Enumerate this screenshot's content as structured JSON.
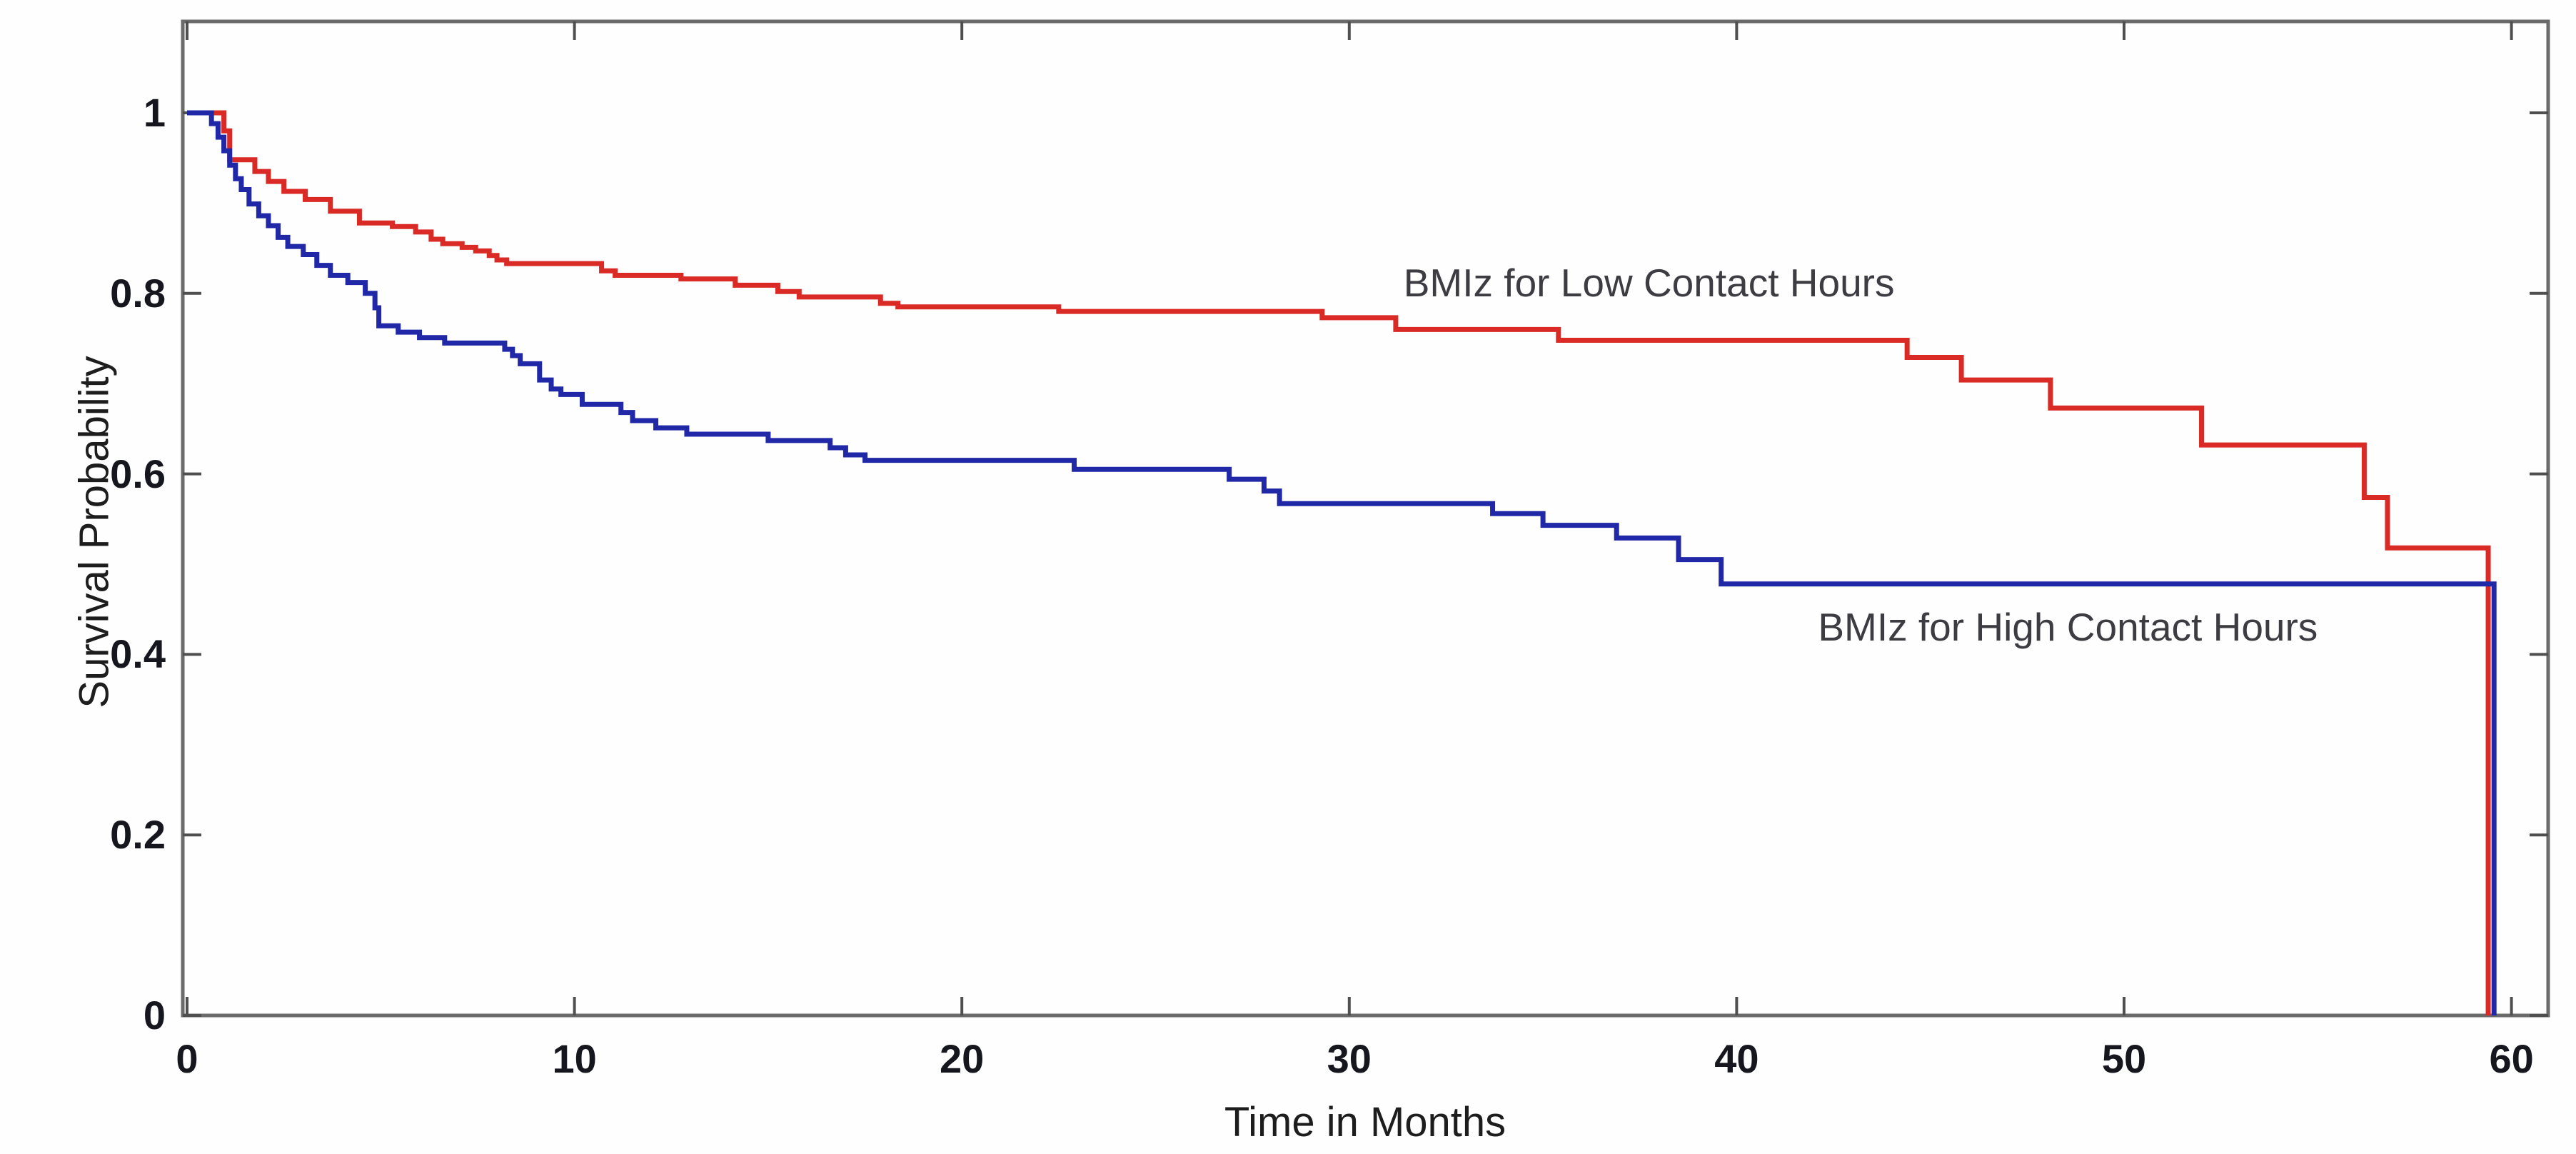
{
  "chart_data": {
    "type": "line",
    "subtype": "kaplan-meier-step-survival",
    "title": "",
    "xlabel": "Time in Months",
    "ylabel": "Survival Probability",
    "xlim": [
      0,
      61
    ],
    "ylim": [
      0,
      1.1
    ],
    "grid": false,
    "legend_position": "inline-labels",
    "axis_color": "#6a6a6a",
    "tick_color": "#4f4f4f",
    "x_ticks": [
      {
        "value": 0,
        "label": "0"
      },
      {
        "value": 10,
        "label": "10"
      },
      {
        "value": 20,
        "label": "20"
      },
      {
        "value": 30,
        "label": "30"
      },
      {
        "value": 40,
        "label": "40"
      },
      {
        "value": 50,
        "label": "50"
      },
      {
        "value": 60,
        "label": "60"
      }
    ],
    "y_ticks": [
      {
        "value": 1,
        "label": "1"
      },
      {
        "value": 0.8,
        "label": "0.8"
      },
      {
        "value": 0.6,
        "label": "0.6"
      },
      {
        "value": 0.4,
        "label": "0.4"
      },
      {
        "value": 0.2,
        "label": "0.2"
      },
      {
        "value": 0,
        "label": "0"
      }
    ],
    "series": [
      {
        "name": "BMIz for Low Contact Hours",
        "color": "#d92a25",
        "points": [
          [
            0,
            1.0
          ],
          [
            0.95,
            0.98
          ],
          [
            1.1,
            0.948
          ],
          [
            1.75,
            0.935
          ],
          [
            2.1,
            0.924
          ],
          [
            2.5,
            0.913
          ],
          [
            3.05,
            0.904
          ],
          [
            3.7,
            0.891
          ],
          [
            4.45,
            0.878
          ],
          [
            5.3,
            0.874
          ],
          [
            5.9,
            0.868
          ],
          [
            6.3,
            0.86
          ],
          [
            6.6,
            0.855
          ],
          [
            7.1,
            0.851
          ],
          [
            7.45,
            0.847
          ],
          [
            7.8,
            0.842
          ],
          [
            8.0,
            0.837
          ],
          [
            8.25,
            0.833
          ],
          [
            10.7,
            0.825
          ],
          [
            11.05,
            0.82
          ],
          [
            12.75,
            0.816
          ],
          [
            14.15,
            0.809
          ],
          [
            15.25,
            0.802
          ],
          [
            15.8,
            0.796
          ],
          [
            17.9,
            0.789
          ],
          [
            18.35,
            0.785
          ],
          [
            22.5,
            0.78
          ],
          [
            29.3,
            0.773
          ],
          [
            31.2,
            0.76
          ],
          [
            35.4,
            0.748
          ],
          [
            44.4,
            0.729
          ],
          [
            45.8,
            0.704
          ],
          [
            48.1,
            0.673
          ],
          [
            52.0,
            0.632
          ],
          [
            56.2,
            0.574
          ],
          [
            56.8,
            0.518
          ],
          [
            59.4,
            0
          ]
        ]
      },
      {
        "name": "BMIz for High Contact Hours",
        "color": "#2028a8",
        "points": [
          [
            0,
            1.0
          ],
          [
            0.63,
            0.988
          ],
          [
            0.8,
            0.973
          ],
          [
            0.95,
            0.958
          ],
          [
            1.1,
            0.942
          ],
          [
            1.25,
            0.927
          ],
          [
            1.4,
            0.915
          ],
          [
            1.6,
            0.899
          ],
          [
            1.85,
            0.886
          ],
          [
            2.1,
            0.875
          ],
          [
            2.35,
            0.862
          ],
          [
            2.6,
            0.852
          ],
          [
            3.0,
            0.843
          ],
          [
            3.35,
            0.831
          ],
          [
            3.7,
            0.82
          ],
          [
            4.15,
            0.812
          ],
          [
            4.6,
            0.8
          ],
          [
            4.85,
            0.784
          ],
          [
            4.95,
            0.764
          ],
          [
            5.45,
            0.757
          ],
          [
            6.0,
            0.751
          ],
          [
            6.65,
            0.745
          ],
          [
            8.2,
            0.738
          ],
          [
            8.4,
            0.731
          ],
          [
            8.6,
            0.722
          ],
          [
            9.1,
            0.704
          ],
          [
            9.4,
            0.694
          ],
          [
            9.65,
            0.688
          ],
          [
            10.2,
            0.677
          ],
          [
            11.2,
            0.668
          ],
          [
            11.5,
            0.659
          ],
          [
            12.1,
            0.651
          ],
          [
            12.9,
            0.644
          ],
          [
            15.0,
            0.637
          ],
          [
            16.6,
            0.629
          ],
          [
            17.0,
            0.621
          ],
          [
            17.5,
            0.615
          ],
          [
            22.9,
            0.605
          ],
          [
            26.9,
            0.594
          ],
          [
            27.8,
            0.581
          ],
          [
            28.2,
            0.567
          ],
          [
            33.7,
            0.556
          ],
          [
            35.0,
            0.543
          ],
          [
            36.9,
            0.529
          ],
          [
            38.5,
            0.505
          ],
          [
            39.6,
            0.478
          ],
          [
            59.55,
            0
          ]
        ]
      }
    ],
    "annotations": [
      {
        "text": "BMIz for Low Contact Hours",
        "x": 31.4,
        "y": 0.81
      },
      {
        "text": "BMIz for High Contact Hours",
        "x": 42.1,
        "y": 0.429
      }
    ]
  }
}
